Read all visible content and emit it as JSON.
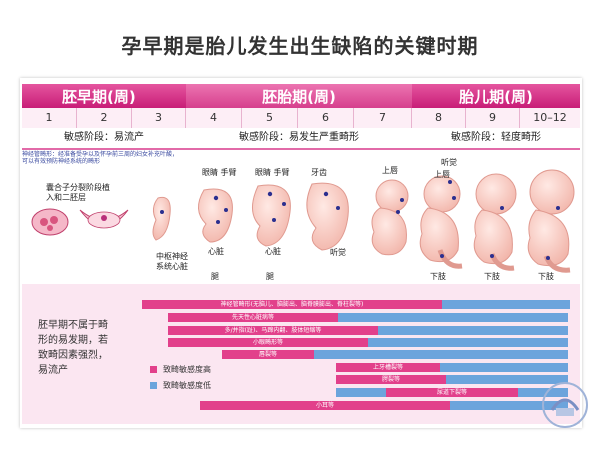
{
  "title": "孕早期是胎儿发生出生缺陷的关键时期",
  "periods": [
    {
      "label": "胚早期(周)"
    },
    {
      "label": "胚胎期(周)"
    },
    {
      "label": "胎儿期(周)"
    }
  ],
  "weeks": [
    "1",
    "2",
    "3",
    "4",
    "5",
    "6",
    "7",
    "8",
    "9",
    "10–12"
  ],
  "sensitivity": [
    "敏感阶段：易流产",
    "敏感阶段：易发生严重畸形",
    "敏感阶段：轻度畸形"
  ],
  "note": "神经管畸形：经准备受孕以及怀孕前三周的妇女补充叶酸，可以有效预防神经系统的畸形",
  "diagram_labels": {
    "early_stage": "囊合子分裂阶段植入和二胚层",
    "cns_heart": "中枢神经系统心脏",
    "eye_arm_1": "眼睛 手臂",
    "heart_1": "心脏",
    "leg_1": "腿",
    "eye_arm_2": "眼睛 手臂",
    "heart_2": "心脏",
    "leg_2": "腿",
    "teeth": "牙齿",
    "hearing": "听觉",
    "lip_7": "上唇",
    "hearing_8": "听觉",
    "lip_8": "上唇",
    "limb_8": "下肢",
    "limb_9": "下肢",
    "limb_10": "下肢"
  },
  "left_text": "胚早期不属于畸形的易发期，若致畸因素强烈，易流产",
  "legend": [
    {
      "label": "致畸敏感度高",
      "color": "#e2408b"
    },
    {
      "label": "致畸敏感度低",
      "color": "#6ca4dc"
    }
  ],
  "bars": [
    {
      "label": "神经管畸形(无脑儿、脑膨出、脑脊膜膨出、脊柱裂等)"
    },
    {
      "label": "先天性心脏病等"
    },
    {
      "label": "多/并指(趾)、马蹄内翻、肢体短缩等"
    },
    {
      "label": "小眼畸形等"
    },
    {
      "label": "唇裂等"
    },
    {
      "label": "上牙槽裂等"
    },
    {
      "label": "腭裂等"
    },
    {
      "label": "尿道下裂等"
    },
    {
      "label": "小耳等"
    }
  ]
}
